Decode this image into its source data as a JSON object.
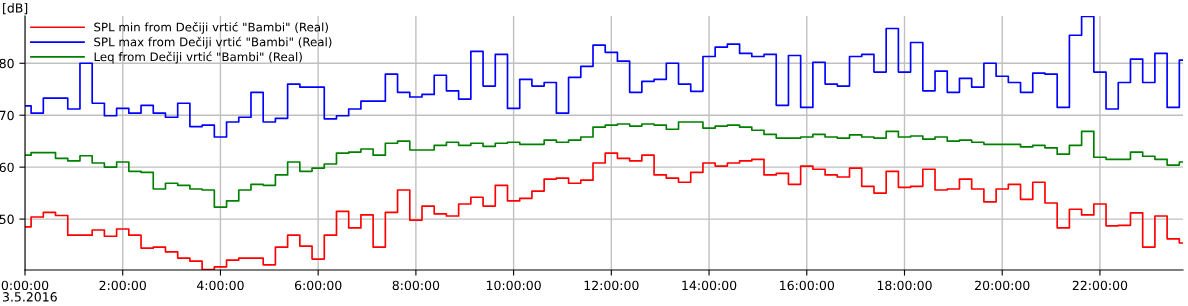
{
  "chart_data": {
    "type": "step",
    "ylabel": "[dB]",
    "x": [
      0,
      0.125,
      0.375,
      0.625,
      0.875,
      1.125,
      1.375,
      1.625,
      1.875,
      2.125,
      2.375,
      2.625,
      2.875,
      3.125,
      3.375,
      3.625,
      3.875,
      4.125,
      4.375,
      4.625,
      4.875,
      5.125,
      5.375,
      5.625,
      5.875,
      6.125,
      6.375,
      6.625,
      6.875,
      7.125,
      7.375,
      7.625,
      7.875,
      8.125,
      8.375,
      8.625,
      8.875,
      9.125,
      9.375,
      9.625,
      9.875,
      10.125,
      10.375,
      10.625,
      10.875,
      11.125,
      11.375,
      11.625,
      11.875,
      12.125,
      12.375,
      12.625,
      12.875,
      13.125,
      13.375,
      13.625,
      13.875,
      14.125,
      14.375,
      14.625,
      14.875,
      15.125,
      15.375,
      15.625,
      15.875,
      16.125,
      16.375,
      16.625,
      16.875,
      17.125,
      17.375,
      17.625,
      17.875,
      18.125,
      18.375,
      18.625,
      18.875,
      19.125,
      19.375,
      19.625,
      19.875,
      20.125,
      20.375,
      20.625,
      20.875,
      21.125,
      21.375,
      21.625,
      21.875,
      22.125,
      22.375,
      22.625,
      22.875,
      23.125,
      23.375,
      23.625
    ],
    "series": [
      {
        "name": "SPL min from Dečiji vrtić \"Bambi\" (Real)",
        "color": "#ff0000",
        "values": [
          48.5,
          50.4,
          51.3,
          50.7,
          46.9,
          46.9,
          47.9,
          46.7,
          48.1,
          46.9,
          44.4,
          44.6,
          43.7,
          42.5,
          41.9,
          40.3,
          40.8,
          42.1,
          42.5,
          42.5,
          41.2,
          44.6,
          46.9,
          44.8,
          42.3,
          46.9,
          51.5,
          48.3,
          50.8,
          44.6,
          51.3,
          55.6,
          49.8,
          52.5,
          51.0,
          50.6,
          52.9,
          54.2,
          52.5,
          56.5,
          53.5,
          54.0,
          55.4,
          57.7,
          57.9,
          56.9,
          57.5,
          60.8,
          62.7,
          61.7,
          61.2,
          62.3,
          58.5,
          57.9,
          57.1,
          59.0,
          60.8,
          60.2,
          60.8,
          61.2,
          61.5,
          58.5,
          58.8,
          56.7,
          60.2,
          59.6,
          58.5,
          58.1,
          59.8,
          56.3,
          55.0,
          59.2,
          56.1,
          56.3,
          59.6,
          55.6,
          55.8,
          57.7,
          55.8,
          53.3,
          55.8,
          56.7,
          53.8,
          57.1,
          53.1,
          48.3,
          51.9,
          50.8,
          52.9,
          48.7,
          48.8,
          51.2,
          44.6,
          50.6,
          46.2,
          45.4
        ]
      },
      {
        "name": "SPL max from Dečiji vrtić \"Bambi\" (Real)",
        "color": "#0000ff",
        "values": [
          71.8,
          70.4,
          73.3,
          73.3,
          71.2,
          80.0,
          72.3,
          69.9,
          71.3,
          70.4,
          71.9,
          70.4,
          69.6,
          72.3,
          67.8,
          68.1,
          65.8,
          68.7,
          69.6,
          74.4,
          68.7,
          69.4,
          76.0,
          75.4,
          75.4,
          69.3,
          69.9,
          71.2,
          72.7,
          72.7,
          77.9,
          74.4,
          73.5,
          74.0,
          77.7,
          74.7,
          73.1,
          82.3,
          75.6,
          81.7,
          71.3,
          76.9,
          75.6,
          76.3,
          70.4,
          77.3,
          79.4,
          83.5,
          82.1,
          80.4,
          74.4,
          76.5,
          76.9,
          80.0,
          76.0,
          74.6,
          81.3,
          83.1,
          83.7,
          81.9,
          81.3,
          81.7,
          71.9,
          81.5,
          71.5,
          80.2,
          76.0,
          75.6,
          81.3,
          81.7,
          78.3,
          86.7,
          78.3,
          84.0,
          74.7,
          78.5,
          74.4,
          77.1,
          75.4,
          80.0,
          77.5,
          76.3,
          74.4,
          78.1,
          77.9,
          71.5,
          85.4,
          89.0,
          78.3,
          71.2,
          76.3,
          80.8,
          76.3,
          81.9,
          71.5,
          80.6
        ]
      },
      {
        "name": "Leq from Dečiji vrtić \"Bambi\" (Real)",
        "color": "#008000",
        "values": [
          62.3,
          62.8,
          62.8,
          61.7,
          61.2,
          62.2,
          60.8,
          60.0,
          61.0,
          59.2,
          59.0,
          55.8,
          56.9,
          56.5,
          55.8,
          55.6,
          52.3,
          53.5,
          55.6,
          56.7,
          56.5,
          58.5,
          61.0,
          59.2,
          59.8,
          60.6,
          62.7,
          62.9,
          63.5,
          62.3,
          64.6,
          65.0,
          63.3,
          63.3,
          64.2,
          64.8,
          64.2,
          64.6,
          64.0,
          64.6,
          64.8,
          64.4,
          64.4,
          65.2,
          64.8,
          65.2,
          65.8,
          67.7,
          68.1,
          68.3,
          67.9,
          68.3,
          68.1,
          67.3,
          68.7,
          68.7,
          67.5,
          67.9,
          68.1,
          67.7,
          67.1,
          66.3,
          65.6,
          65.6,
          65.8,
          66.3,
          65.8,
          65.6,
          66.2,
          65.8,
          65.6,
          66.9,
          65.8,
          66.0,
          65.4,
          65.8,
          65.0,
          65.2,
          64.8,
          64.4,
          64.4,
          64.4,
          63.9,
          64.2,
          63.7,
          62.5,
          64.2,
          66.9,
          61.9,
          61.5,
          61.5,
          62.9,
          62.1,
          61.5,
          60.4,
          61.0
        ]
      }
    ],
    "xlim": [
      0,
      23.7
    ],
    "xticks": [
      {
        "value": 0,
        "label": "0:00:00"
      },
      {
        "value": 2,
        "label": "2:00:00"
      },
      {
        "value": 4,
        "label": "4:00:00"
      },
      {
        "value": 6,
        "label": "6:00:00"
      },
      {
        "value": 8,
        "label": "8:00:00"
      },
      {
        "value": 10,
        "label": "10:00:00"
      },
      {
        "value": 12,
        "label": "12:00:00"
      },
      {
        "value": 14,
        "label": "14:00:00"
      },
      {
        "value": 16,
        "label": "16:00:00"
      },
      {
        "value": 18,
        "label": "18:00:00"
      },
      {
        "value": 20,
        "label": "20:00:00"
      },
      {
        "value": 22,
        "label": "22:00:00"
      }
    ],
    "ylim": [
      40.2,
      89.1
    ],
    "yticks": [
      50,
      60,
      70,
      80
    ],
    "grid": true,
    "legend": "top left",
    "annotations": [
      "3.5.2016"
    ]
  }
}
